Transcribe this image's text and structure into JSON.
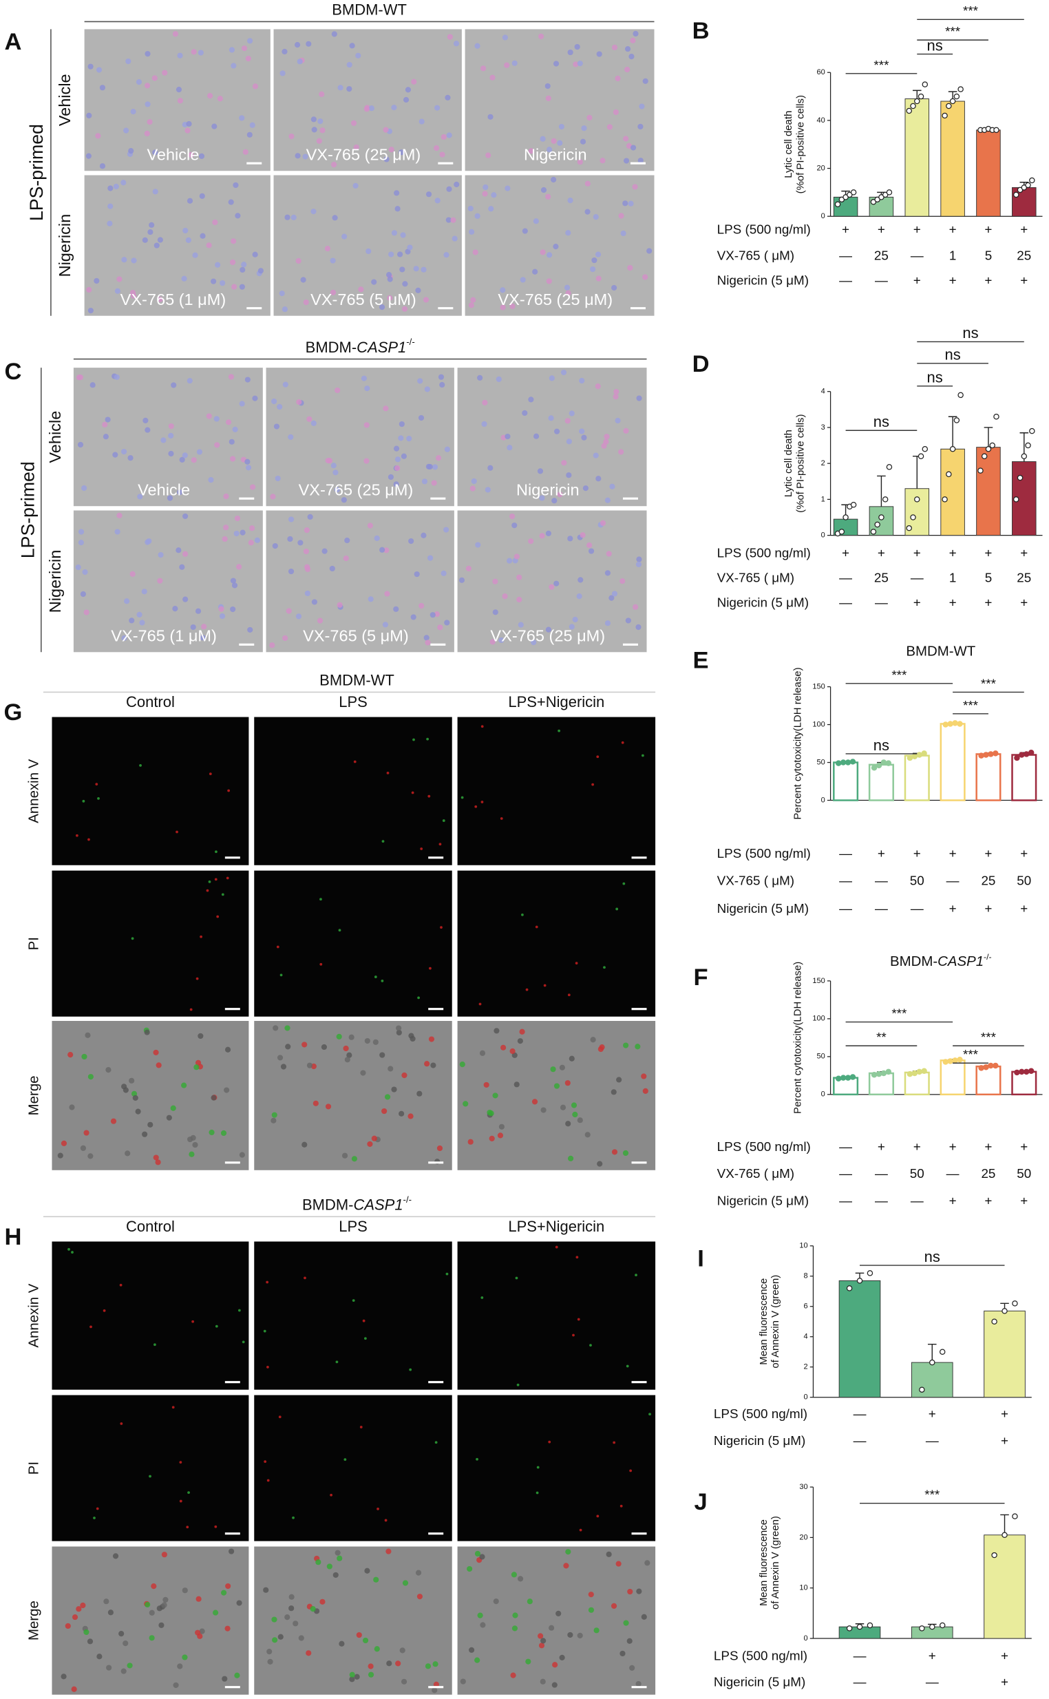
{
  "panels": {
    "A": {
      "letter": "A",
      "title": "BMDM-WT",
      "group": "LPS-primed",
      "rows": [
        "Vehicle",
        "Nigericin"
      ],
      "images": [
        "Vehicle",
        "VX-765 (25 μM)",
        "Nigericin",
        "VX-765 (1 μM)",
        "VX-765 (5 μM)",
        "VX-765 (25 μM)"
      ]
    },
    "C": {
      "letter": "C",
      "title": {
        "prefix": "BMDM-",
        "gene": "CASP1",
        "sup": "-/-"
      },
      "group": "LPS-primed",
      "rows": [
        "Vehicle",
        "Nigericin"
      ],
      "images": [
        "Vehicle",
        "VX-765 (25 μM)",
        "Nigericin",
        "VX-765 (1 μM)",
        "VX-765 (5 μM)",
        "VX-765 (25 μM)"
      ]
    },
    "G": {
      "letter": "G",
      "title": "BMDM-WT",
      "columns": [
        "Control",
        "LPS",
        "LPS+Nigericin"
      ],
      "rows": [
        "Annexin V",
        "PI",
        "Merge"
      ]
    },
    "H": {
      "letter": "H",
      "title": {
        "prefix": "BMDM-",
        "gene": "CASP1",
        "sup": "-/-"
      },
      "columns": [
        "Control",
        "LPS",
        "LPS+Nigericin"
      ],
      "rows": [
        "Annexin V",
        "PI",
        "Merge"
      ]
    }
  },
  "chart_data": [
    {
      "type": "bar",
      "letter": "B",
      "ylabel": [
        "Lytic cell death",
        "(%of PI-positive cells)"
      ],
      "ylim": [
        0,
        60
      ],
      "yticks": [
        0,
        20,
        40,
        60
      ],
      "values": [
        8,
        8,
        49,
        48,
        36,
        12
      ],
      "errors": [
        2.5,
        2,
        3.5,
        4,
        0.6,
        2.2
      ],
      "points": [
        [
          5,
          7,
          8,
          9,
          10
        ],
        [
          6,
          7,
          8,
          9,
          10
        ],
        [
          44,
          46,
          48,
          50,
          55
        ],
        [
          42,
          46,
          48,
          50,
          53
        ],
        [
          36,
          36,
          36.5,
          36,
          36
        ],
        [
          9,
          11,
          12,
          13,
          15
        ]
      ],
      "colors": [
        "#4daa7e",
        "#8fca9b",
        "#e9ec9c",
        "#f6d46f",
        "#e8744b",
        "#9e2b3f"
      ],
      "outline": false,
      "conditions": [
        {
          "label": "LPS (500 ng/ml)",
          "values": [
            "+",
            "+",
            "+",
            "+",
            "+",
            "+"
          ]
        },
        {
          "label": "VX-765 ( μM)",
          "values": [
            "—",
            "25",
            "—",
            "1",
            "5",
            "25"
          ]
        },
        {
          "label": "Nigericin (5 μM)",
          "values": [
            "—",
            "—",
            "+",
            "+",
            "+",
            "+"
          ]
        }
      ],
      "comparisons": [
        {
          "label": "***",
          "between": [
            0,
            2
          ]
        },
        {
          "label": "ns",
          "between": [
            2,
            3
          ]
        },
        {
          "label": "***",
          "between": [
            2,
            4
          ]
        },
        {
          "label": "***",
          "between": [
            2,
            5
          ]
        }
      ]
    },
    {
      "type": "bar",
      "letter": "D",
      "ylabel": [
        "Lytic cell death",
        "(%of PI-positive cells)"
      ],
      "ylim": [
        0,
        4
      ],
      "yticks": [
        0,
        1,
        2,
        3,
        4
      ],
      "values": [
        0.45,
        0.8,
        1.3,
        2.4,
        2.45,
        2.05
      ],
      "errors": [
        0.4,
        0.85,
        0.9,
        0.9,
        0.55,
        0.8
      ],
      "points": [
        [
          0.05,
          0.1,
          0.5,
          0.8,
          0.85
        ],
        [
          0.1,
          0.3,
          0.5,
          1.0,
          1.9
        ],
        [
          0.2,
          0.5,
          1.0,
          2.2,
          2.4
        ],
        [
          1.0,
          1.7,
          2.4,
          3.2,
          3.9
        ],
        [
          1.8,
          2.2,
          2.4,
          2.5,
          3.3
        ],
        [
          1.0,
          1.6,
          2.2,
          2.5,
          2.9
        ]
      ],
      "colors": [
        "#4daa7e",
        "#8fca9b",
        "#e9ec9c",
        "#f6d46f",
        "#e8744b",
        "#9e2b3f"
      ],
      "outline": false,
      "conditions": [
        {
          "label": "LPS (500 ng/ml)",
          "values": [
            "+",
            "+",
            "+",
            "+",
            "+",
            "+"
          ]
        },
        {
          "label": "VX-765 ( μM)",
          "values": [
            "—",
            "25",
            "—",
            "1",
            "5",
            "25"
          ]
        },
        {
          "label": "Nigericin (5 μM)",
          "values": [
            "—",
            "—",
            "+",
            "+",
            "+",
            "+"
          ]
        }
      ],
      "comparisons": [
        {
          "label": "ns",
          "between": [
            0,
            2
          ]
        },
        {
          "label": "ns",
          "between": [
            2,
            3
          ]
        },
        {
          "label": "ns",
          "between": [
            2,
            4
          ]
        },
        {
          "label": "ns",
          "between": [
            2,
            5
          ]
        }
      ]
    },
    {
      "type": "bar",
      "letter": "E",
      "title": "BMDM-WT",
      "ylabel": [
        "Percent cytotoxicity(LDH release)"
      ],
      "ylim": [
        0,
        150
      ],
      "yticks": [
        0,
        50,
        100,
        150
      ],
      "values": [
        50,
        47,
        59,
        101,
        61,
        60
      ],
      "errors": [
        1,
        3,
        3,
        1,
        1.5,
        3
      ],
      "points": [
        [
          49,
          50,
          50,
          51
        ],
        [
          43,
          46,
          50,
          49
        ],
        [
          56,
          58,
          60,
          62
        ],
        [
          100,
          101,
          102,
          101
        ],
        [
          59,
          60,
          61,
          62
        ],
        [
          56,
          60,
          61,
          63
        ]
      ],
      "colors": [
        "#4daa7e",
        "#8fca9b",
        "#d9dc7c",
        "#f6d46f",
        "#e8744b",
        "#9e2b3f"
      ],
      "outline": true,
      "conditions": [
        {
          "label": "LPS (500 ng/ml)",
          "values": [
            "—",
            "+",
            "+",
            "+",
            "+",
            "+"
          ]
        },
        {
          "label": "VX-765 ( μM)",
          "values": [
            "—",
            "—",
            "50",
            "—",
            "25",
            "50"
          ]
        },
        {
          "label": "Nigericin (5 μM)",
          "values": [
            "—",
            "—",
            "—",
            "+",
            "+",
            "+"
          ]
        }
      ],
      "comparisons": [
        {
          "label": "ns",
          "between": [
            0,
            2
          ]
        },
        {
          "label": "***",
          "between": [
            0,
            3
          ]
        },
        {
          "label": "***",
          "between": [
            3,
            4
          ]
        },
        {
          "label": "***",
          "between": [
            3,
            5
          ]
        }
      ]
    },
    {
      "type": "bar",
      "letter": "F",
      "title": {
        "prefix": "BMDM-",
        "gene": "CASP1",
        "sup": "-/-"
      },
      "ylabel": [
        "Percent cytotoxicity(LDH release)"
      ],
      "ylim": [
        0,
        150
      ],
      "yticks": [
        0,
        50,
        100,
        150
      ],
      "values": [
        22,
        28,
        29,
        45,
        37,
        30
      ],
      "errors": [
        1.2,
        2,
        2,
        1.5,
        1.5,
        1
      ],
      "points": [
        [
          21,
          22,
          22,
          23
        ],
        [
          26,
          27,
          28,
          30
        ],
        [
          27,
          28,
          30,
          31
        ],
        [
          43,
          44,
          45,
          46
        ],
        [
          35,
          36,
          38,
          38
        ],
        [
          29,
          30,
          30,
          31
        ]
      ],
      "colors": [
        "#4daa7e",
        "#8fca9b",
        "#d9dc7c",
        "#f6d46f",
        "#e8744b",
        "#9e2b3f"
      ],
      "outline": true,
      "conditions": [
        {
          "label": "LPS (500 ng/ml)",
          "values": [
            "—",
            "+",
            "+",
            "+",
            "+",
            "+"
          ]
        },
        {
          "label": "VX-765 ( μM)",
          "values": [
            "—",
            "—",
            "50",
            "—",
            "25",
            "50"
          ]
        },
        {
          "label": "Nigericin (5 μM)",
          "values": [
            "—",
            "—",
            "—",
            "+",
            "+",
            "+"
          ]
        }
      ],
      "comparisons": [
        {
          "label": "**",
          "between": [
            0,
            2
          ]
        },
        {
          "label": "***",
          "between": [
            0,
            3
          ]
        },
        {
          "label": "***",
          "between": [
            3,
            4
          ]
        },
        {
          "label": "***",
          "between": [
            3,
            5
          ]
        }
      ]
    },
    {
      "type": "bar",
      "letter": "I",
      "ylabel": [
        "Mean fluorescence",
        "of Annexin V (green)"
      ],
      "ylim": [
        0,
        10
      ],
      "yticks": [
        0,
        2,
        4,
        6,
        8,
        10
      ],
      "values": [
        7.7,
        2.3,
        5.7
      ],
      "errors": [
        0.5,
        1.2,
        0.5
      ],
      "points": [
        [
          7.2,
          7.7,
          8.2
        ],
        [
          0.5,
          2.3,
          3.0
        ],
        [
          5.0,
          5.7,
          6.2
        ]
      ],
      "colors": [
        "#4daa7e",
        "#8fca9b",
        "#e9ec9c"
      ],
      "outline": false,
      "conditions": [
        {
          "label": "LPS (500 ng/ml)",
          "values": [
            "—",
            "+",
            "+"
          ]
        },
        {
          "label": "Nigericin (5 μM)",
          "values": [
            "—",
            "—",
            "+"
          ]
        }
      ],
      "comparisons": [
        {
          "label": "ns",
          "between": [
            0,
            2
          ]
        }
      ]
    },
    {
      "type": "bar",
      "letter": "J",
      "ylabel": [
        "Mean fluorescence",
        "of Annexin V (green)"
      ],
      "ylim": [
        0,
        30
      ],
      "yticks": [
        0,
        10,
        20,
        30
      ],
      "values": [
        2.3,
        2.3,
        20.5
      ],
      "errors": [
        0.6,
        0.5,
        4.0
      ],
      "points": [
        [
          2.0,
          2.3,
          2.6
        ],
        [
          2.0,
          2.3,
          2.6
        ],
        [
          16.5,
          20.5,
          24.2
        ]
      ],
      "colors": [
        "#4daa7e",
        "#8fca9b",
        "#e9ec9c"
      ],
      "outline": false,
      "conditions": [
        {
          "label": "LPS (500 ng/ml)",
          "values": [
            "—",
            "+",
            "+"
          ]
        },
        {
          "label": "Nigericin (5 μM)",
          "values": [
            "—",
            "—",
            "+"
          ]
        }
      ],
      "comparisons": [
        {
          "label": "***",
          "between": [
            0,
            2
          ]
        }
      ]
    }
  ]
}
